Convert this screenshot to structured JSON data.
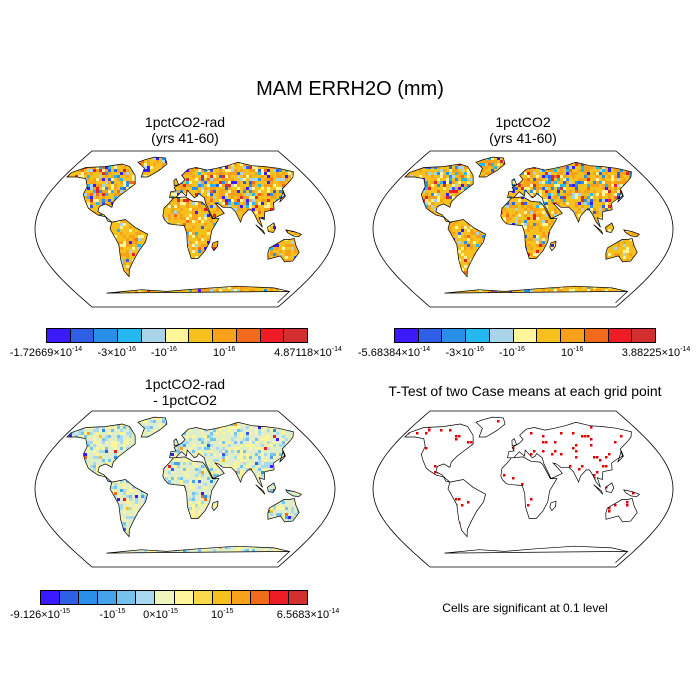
{
  "title": "MAM ERRH2O (mm)",
  "panels": [
    {
      "id": "a",
      "title_line1": "1pctCO2-rad",
      "title_line2": "(yrs 41-60)"
    },
    {
      "id": "b",
      "title_line1": "1pctCO2",
      "title_line2": "(yrs 41-60)"
    },
    {
      "id": "c",
      "title_line1": "1pctCO2-rad",
      "title_line2": "- 1pctCO2"
    },
    {
      "id": "d",
      "title_line1": "T-Test of two Case means at each grid point",
      "title_line2": ""
    }
  ],
  "colorbars": [
    {
      "colors": [
        "#3b1aff",
        "#2f5fe6",
        "#2a8fe8",
        "#25b8f0",
        "#a9d3e8",
        "#fff59a",
        "#f7c11d",
        "#f7a21a",
        "#f26a1c",
        "#ee1c25",
        "#d32f2f"
      ],
      "labels": [
        {
          "base": "-1.72669×10",
          "exp": "-14"
        },
        {
          "base": "-3×10",
          "exp": "-16"
        },
        {
          "base": "-10",
          "exp": "-16"
        },
        {
          "base": "10",
          "exp": "-16"
        },
        {
          "base": "4.87118×10",
          "exp": "-14"
        }
      ]
    },
    {
      "colors": [
        "#3b1aff",
        "#2f5fe6",
        "#2a8fe8",
        "#25b8f0",
        "#a9d3e8",
        "#fff59a",
        "#f7c11d",
        "#f7a21a",
        "#f26a1c",
        "#ee1c25",
        "#d32f2f"
      ],
      "labels": [
        {
          "base": "-5.68384×10",
          "exp": "-14"
        },
        {
          "base": "-3×10",
          "exp": "-16"
        },
        {
          "base": "-10",
          "exp": "-16"
        },
        {
          "base": "10",
          "exp": "-16"
        },
        {
          "base": "3.88225×10",
          "exp": "-14"
        }
      ]
    },
    {
      "colors": [
        "#3b1aff",
        "#2f5fe6",
        "#2a8fe8",
        "#45a3ea",
        "#74c3ef",
        "#a8d9f0",
        "#eef5bf",
        "#fff59a",
        "#f9d84a",
        "#f7c11d",
        "#f7a21a",
        "#f26a1c",
        "#ee1c25",
        "#d32f2f"
      ],
      "labels": [
        {
          "base": "-9.126×10",
          "exp": "-15"
        },
        {
          "base": "-10",
          "exp": "-15"
        },
        {
          "base": "0×10",
          "exp": "-15"
        },
        {
          "base": "10",
          "exp": "-15"
        },
        {
          "base": "6.5683×10",
          "exp": "-14"
        }
      ]
    }
  ],
  "footnote": "Cells are significant at 0.1 level",
  "colors": {
    "land_a": "#f7c11d",
    "land_b": "#f7c11d",
    "land_c": "#dfeec8",
    "significant": "#e00000",
    "coast": "#000000"
  }
}
